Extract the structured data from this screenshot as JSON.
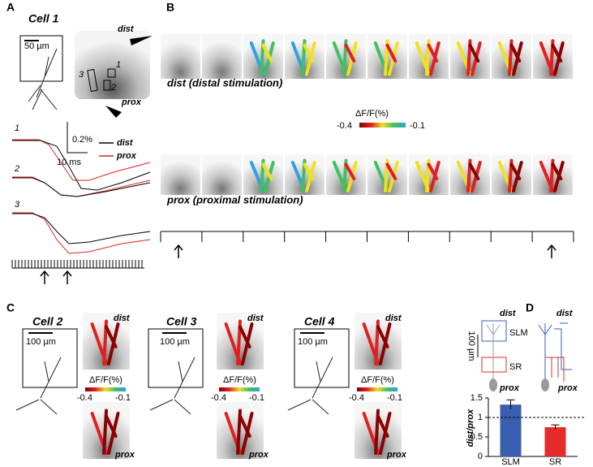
{
  "panel_a": {
    "label": "A",
    "title": "Cell 1",
    "scale_bar": "50 µm",
    "dist": "dist",
    "prox": "prox",
    "rois": [
      "1",
      "2",
      "3"
    ],
    "trace_scale_y": "0.2%",
    "trace_scale_x": "10 ms",
    "traces": [
      "1",
      "2",
      "3"
    ],
    "legend": [
      {
        "name": "dist",
        "color": "#000000"
      },
      {
        "name": "prox",
        "color": "#e02020"
      }
    ]
  },
  "panel_b": {
    "label": "B",
    "dist_caption": "dist (distal stimulation)",
    "prox_caption": "prox (proximal stimulation)",
    "colorbar": {
      "title": "ΔF/F(%)",
      "min": -0.4,
      "max": -0.1
    }
  },
  "panel_c": {
    "label": "C",
    "cells": [
      {
        "title": "Cell 2",
        "scale_bar": "100 µm",
        "dist": "dist",
        "prox": "prox",
        "colorbar_title": "ΔF/F(%)",
        "min": -0.4,
        "max": -0.1
      },
      {
        "title": "Cell 3",
        "scale_bar": "100 µm",
        "dist": "dist",
        "prox": "prox",
        "colorbar_title": "ΔF/F(%)",
        "min": -0.4,
        "max": -0.1
      },
      {
        "title": "Cell 4",
        "scale_bar": "100 µm",
        "dist": "dist",
        "prox": "prox",
        "colorbar_title": "ΔF/F(%)",
        "min": -0.4,
        "max": -0.1
      }
    ]
  },
  "panel_d": {
    "label": "D",
    "schematic": {
      "dist_left": "dist",
      "dist_right": "dist",
      "prox_left": "prox",
      "prox_right": "prox",
      "slm": "SLM",
      "sr": "SR",
      "scale_bar": "100 µm"
    },
    "chart": {
      "type": "bar",
      "y_label": "dist/prox",
      "categories": [
        "SLM",
        "SR"
      ],
      "values": [
        1.33,
        0.75
      ],
      "errors": [
        0.12,
        0.06
      ],
      "colors": [
        "#3a5fb0",
        "#e62b2b"
      ],
      "ylim": [
        0,
        1.5
      ],
      "yticks": [
        0,
        0.5,
        1,
        1.5
      ],
      "reference_line": 1
    }
  }
}
